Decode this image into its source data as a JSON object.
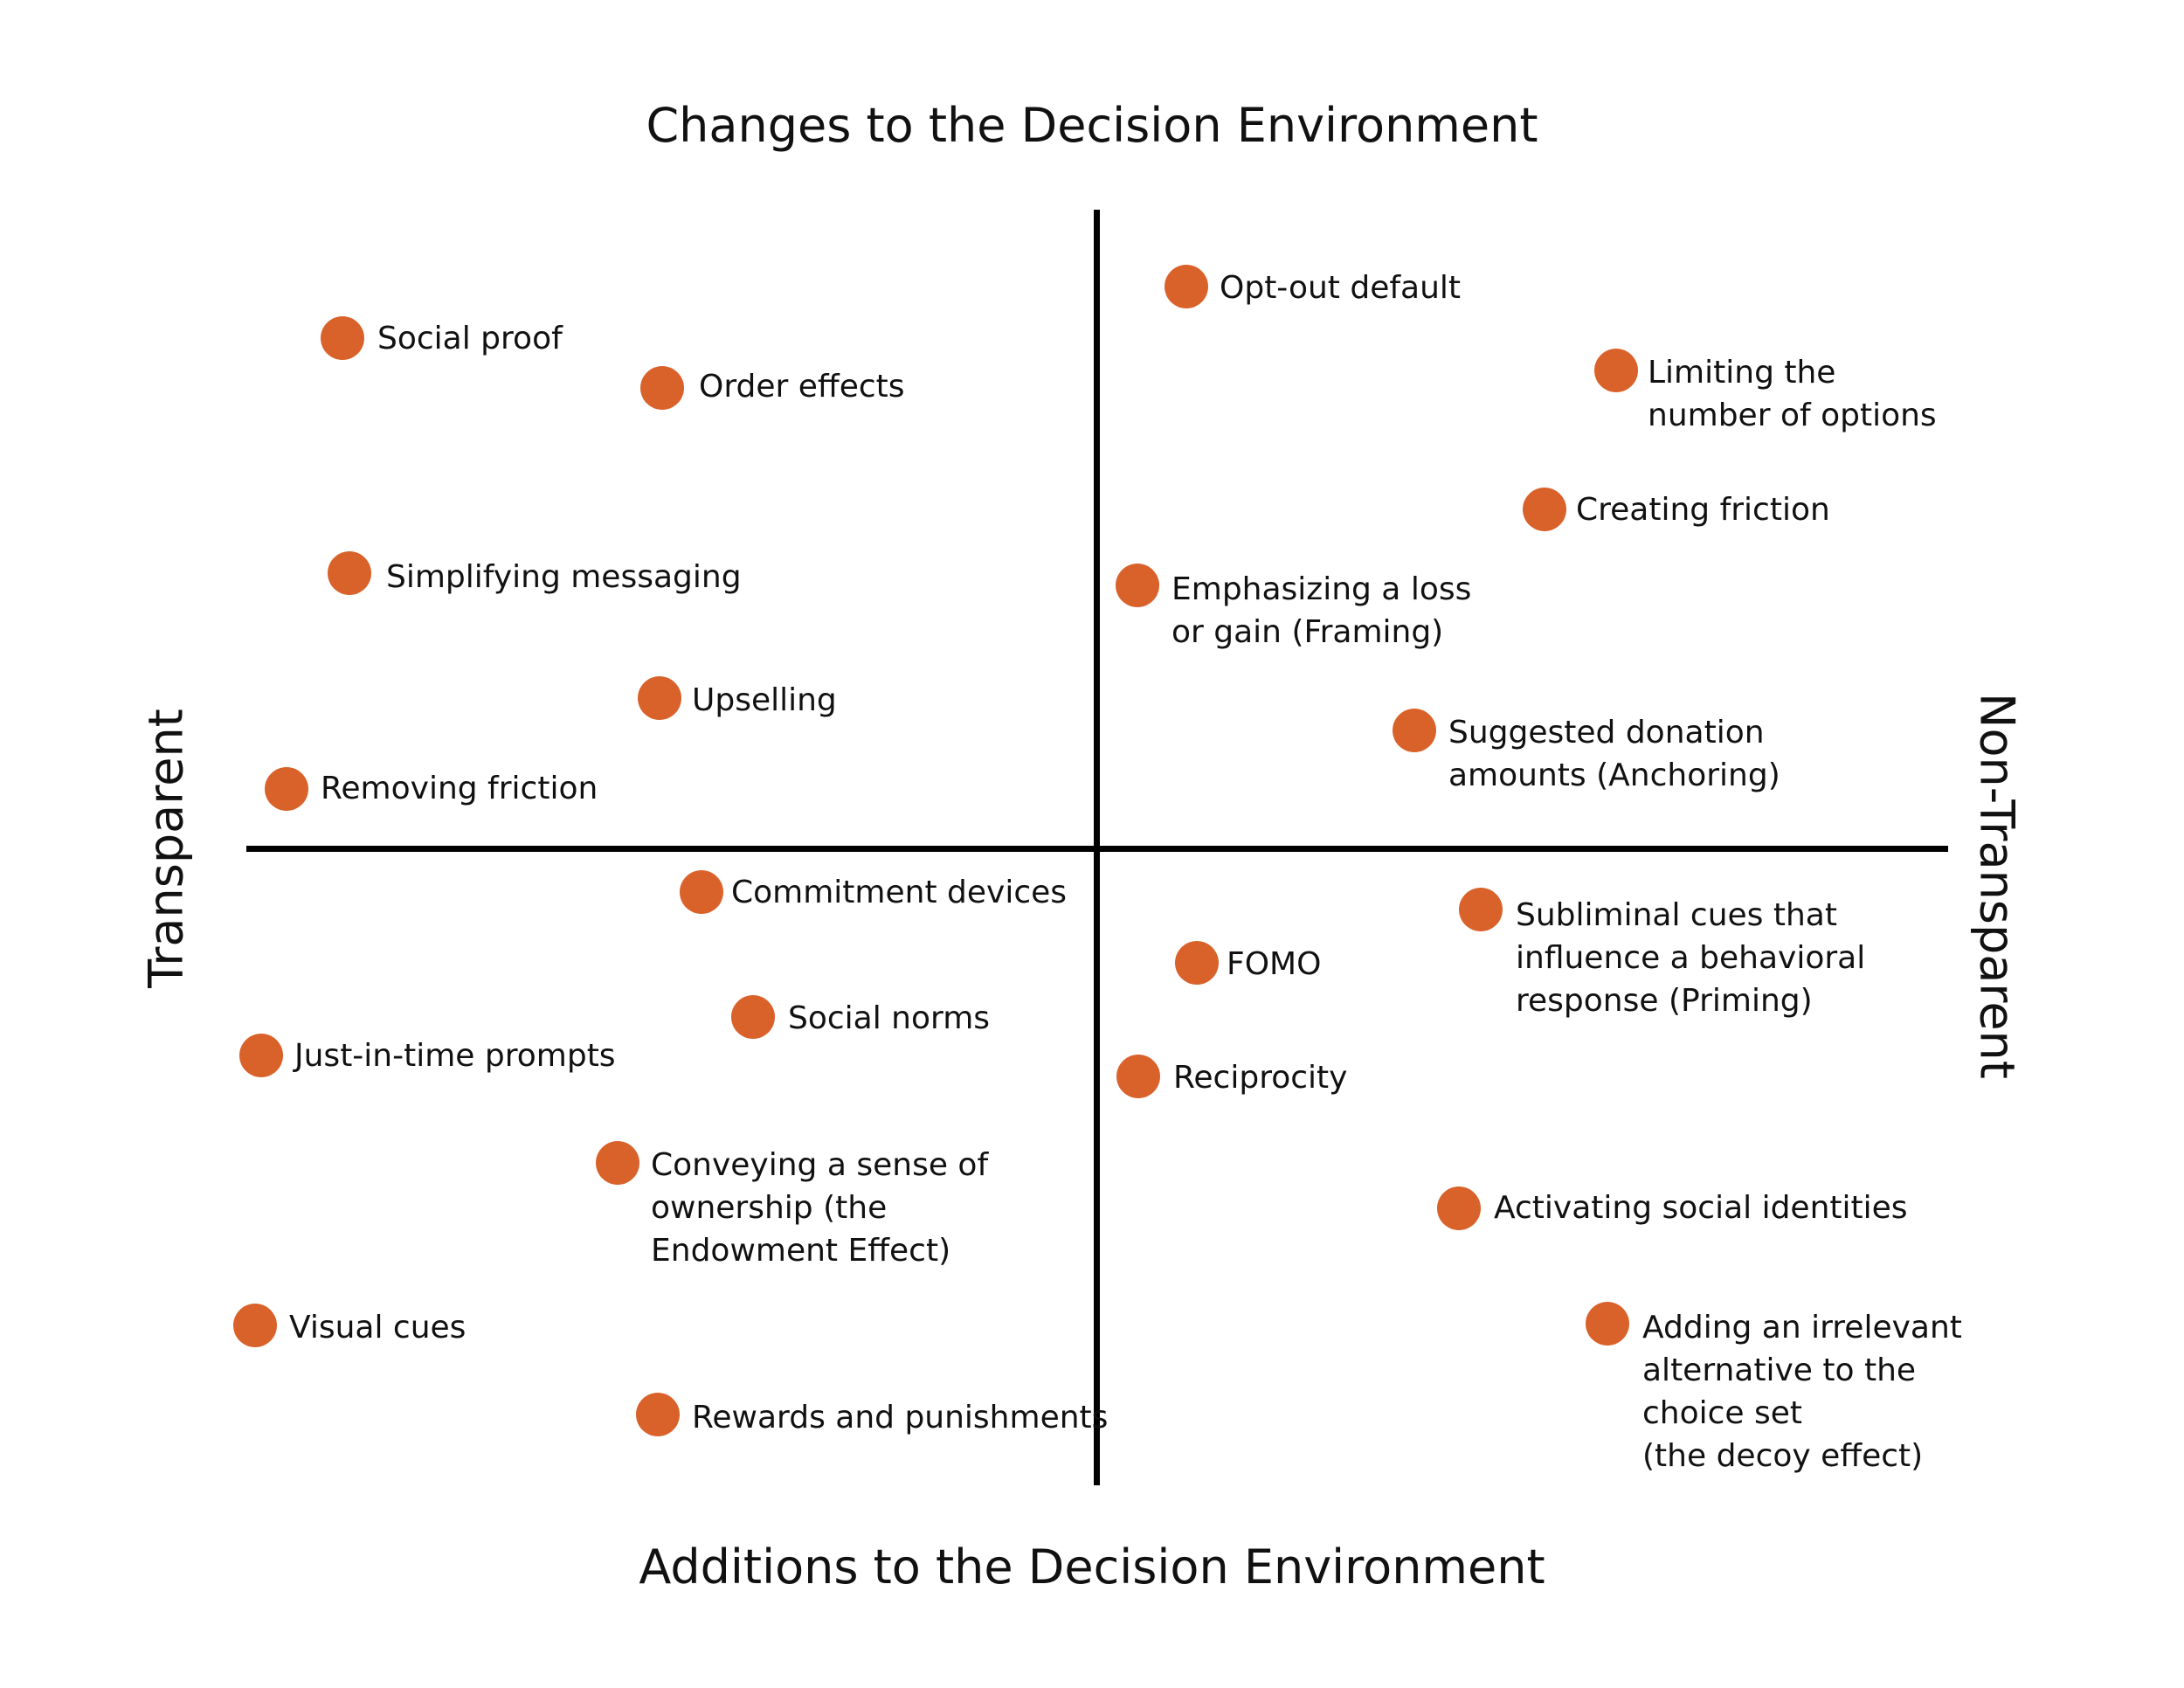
{
  "title_top": "Changes to the Decision Environment",
  "title_bottom": "Additions to the Decision Environment",
  "label_left": "Transparent",
  "label_right": "Non-Transparent",
  "colors": {
    "dot": "#d9622b",
    "axis": "#000000",
    "text": "#111111"
  },
  "items": [
    {
      "id": "social-proof",
      "lines": [
        "Social proof"
      ]
    },
    {
      "id": "order-effects",
      "lines": [
        "Order effects"
      ]
    },
    {
      "id": "simplifying-messaging",
      "lines": [
        "Simplifying messaging"
      ]
    },
    {
      "id": "upselling",
      "lines": [
        "Upselling"
      ]
    },
    {
      "id": "removing-friction",
      "lines": [
        "Removing friction"
      ]
    },
    {
      "id": "opt-out-default",
      "lines": [
        "Opt-out default"
      ]
    },
    {
      "id": "limiting-options",
      "lines": [
        "Limiting the",
        "number of options"
      ]
    },
    {
      "id": "creating-friction",
      "lines": [
        "Creating friction"
      ]
    },
    {
      "id": "framing",
      "lines": [
        "Emphasizing a loss",
        "or gain (Framing)"
      ]
    },
    {
      "id": "anchoring",
      "lines": [
        "Suggested donation",
        "amounts (Anchoring)"
      ]
    },
    {
      "id": "commitment-devices",
      "lines": [
        "Commitment devices"
      ]
    },
    {
      "id": "social-norms",
      "lines": [
        "Social norms"
      ]
    },
    {
      "id": "just-in-time-prompts",
      "lines": [
        "Just-in-time prompts"
      ]
    },
    {
      "id": "endowment-effect",
      "lines": [
        "Conveying a sense of",
        "ownership (the",
        "Endowment Effect)"
      ]
    },
    {
      "id": "visual-cues",
      "lines": [
        "Visual cues"
      ]
    },
    {
      "id": "rewards-punishments",
      "lines": [
        "Rewards and punishments"
      ]
    },
    {
      "id": "fomo",
      "lines": [
        "FOMO"
      ]
    },
    {
      "id": "reciprocity",
      "lines": [
        "Reciprocity"
      ]
    },
    {
      "id": "priming",
      "lines": [
        "Subliminal cues that",
        "influence a behavioral",
        "response (Priming)"
      ]
    },
    {
      "id": "social-identities",
      "lines": [
        "Activating social identities"
      ]
    },
    {
      "id": "decoy-effect",
      "lines": [
        "Adding an irrelevant",
        "alternative to the",
        "choice set",
        "(the decoy effect)"
      ]
    }
  ]
}
